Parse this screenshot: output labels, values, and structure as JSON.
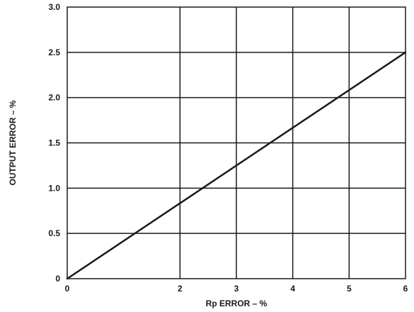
{
  "chart_data": {
    "type": "line",
    "title": "",
    "xlabel": "Rp ERROR – %",
    "ylabel": "OUTPUT ERROR – %",
    "x_ticks": [
      {
        "value": 0,
        "label": "0"
      },
      {
        "value": 2,
        "label": "2"
      },
      {
        "value": 3,
        "label": "3"
      },
      {
        "value": 4,
        "label": "4"
      },
      {
        "value": 5,
        "label": "5"
      },
      {
        "value": 6,
        "label": "6"
      }
    ],
    "y_ticks": [
      {
        "value": 0,
        "label": "0"
      },
      {
        "value": 0.5,
        "label": "0.5"
      },
      {
        "value": 1.0,
        "label": "1.0"
      },
      {
        "value": 1.5,
        "label": "1.5"
      },
      {
        "value": 2.0,
        "label": "2.0"
      },
      {
        "value": 2.5,
        "label": "2.5"
      },
      {
        "value": 3.0,
        "label": "3.0"
      }
    ],
    "series": [
      {
        "x": [
          0,
          6
        ],
        "y": [
          0,
          2.5
        ]
      }
    ],
    "grid": true,
    "legend": "none",
    "colors": {
      "line": "#1a1a1a",
      "grid": "#1a1a1a"
    }
  }
}
